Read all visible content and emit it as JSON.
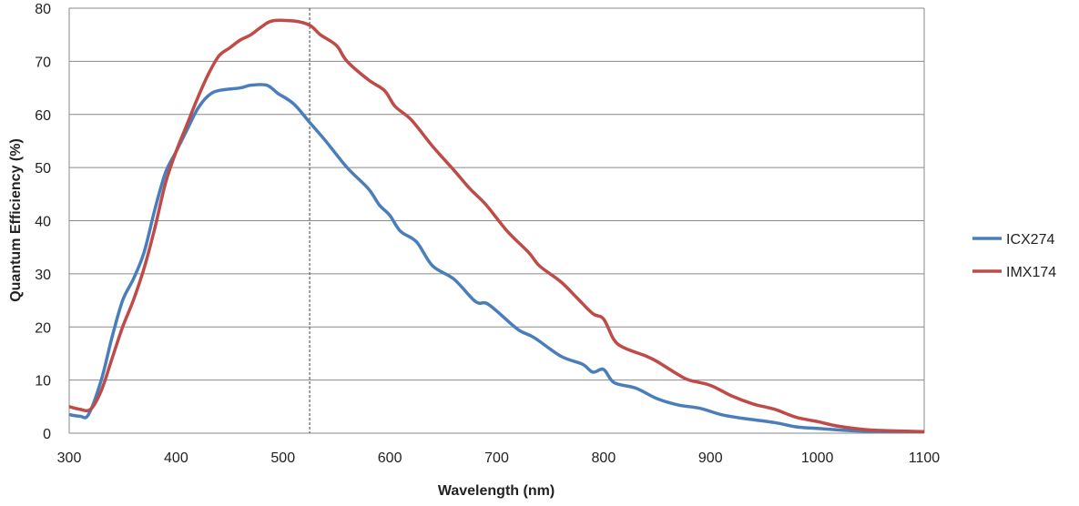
{
  "chart_data": {
    "type": "line",
    "title": "",
    "xlabel": "Wavelength (nm)",
    "ylabel": "Quantum Efficiency (%)",
    "xlim": [
      300,
      1100
    ],
    "ylim": [
      0,
      80
    ],
    "xticks": [
      300,
      400,
      500,
      600,
      700,
      800,
      900,
      1000,
      1100
    ],
    "yticks": [
      0,
      10,
      20,
      30,
      40,
      50,
      60,
      70,
      80
    ],
    "grid": true,
    "legend": "right",
    "reference_line_x": 525,
    "series": [
      {
        "name": "ICX274",
        "color": "#4a7ebb",
        "x": [
          300,
          310,
          318,
          330,
          340,
          350,
          360,
          370,
          380,
          390,
          400,
          410,
          420,
          430,
          440,
          460,
          470,
          485,
          495,
          510,
          525,
          540,
          560,
          580,
          590,
          600,
          610,
          625,
          640,
          660,
          680,
          690,
          700,
          720,
          735,
          760,
          780,
          790,
          800,
          810,
          830,
          850,
          870,
          890,
          910,
          930,
          960,
          980,
          1000,
          1040,
          1100
        ],
        "y": [
          3.5,
          3.2,
          3.5,
          10,
          18,
          25,
          29,
          34,
          42,
          49,
          53,
          57,
          61,
          63.5,
          64.5,
          65,
          65.5,
          65.5,
          64,
          62,
          58.5,
          55,
          50,
          46,
          43,
          41,
          38,
          36,
          31.5,
          29,
          24.8,
          24.5,
          23,
          19.5,
          18,
          14.5,
          13,
          11.5,
          12,
          9.5,
          8.5,
          6.5,
          5.3,
          4.7,
          3.5,
          2.8,
          2,
          1.2,
          0.9,
          0.4,
          0.3
        ]
      },
      {
        "name": "IMX174",
        "color": "#be4b48",
        "x": [
          300,
          310,
          320,
          330,
          340,
          350,
          360,
          370,
          380,
          390,
          400,
          410,
          420,
          430,
          440,
          450,
          460,
          470,
          480,
          490,
          510,
          525,
          535,
          550,
          560,
          580,
          595,
          605,
          620,
          640,
          660,
          675,
          690,
          710,
          730,
          740,
          760,
          775,
          790,
          800,
          810,
          820,
          840,
          850,
          870,
          880,
          900,
          920,
          940,
          960,
          980,
          1000,
          1020,
          1050,
          1100
        ],
        "y": [
          5,
          4.5,
          4.5,
          8,
          14,
          20,
          25,
          31,
          38.5,
          47,
          53,
          58,
          63,
          67.5,
          71,
          72.5,
          74,
          75,
          76.5,
          77.6,
          77.6,
          76.8,
          75,
          73,
          70,
          66.5,
          64.5,
          61.5,
          59,
          54,
          49.5,
          46,
          43,
          38,
          34,
          31.5,
          28.5,
          25.5,
          22.5,
          21.5,
          17.5,
          16,
          14.5,
          13.5,
          11,
          10,
          9,
          7,
          5.5,
          4.5,
          3,
          2.2,
          1.3,
          0.6,
          0.3
        ]
      }
    ]
  }
}
